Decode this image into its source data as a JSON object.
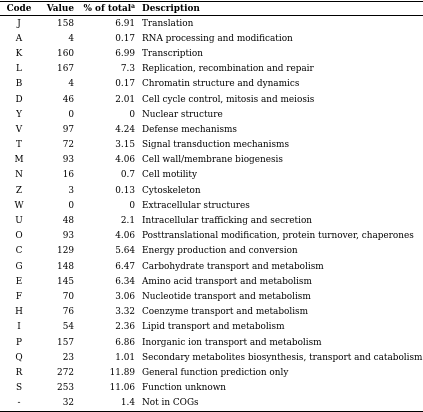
{
  "table": {
    "headers": {
      "code": "Code",
      "value": "Value",
      "percent": "% of total",
      "percent_sup": "a",
      "description": "Description"
    },
    "rows": [
      {
        "code": "J",
        "value": "158",
        "percent": "6.91",
        "description": "Translation"
      },
      {
        "code": "A",
        "value": "4",
        "percent": "0.17",
        "description": "RNA processing and modification"
      },
      {
        "code": "K",
        "value": "160",
        "percent": "6.99",
        "description": "Transcription"
      },
      {
        "code": "L",
        "value": "167",
        "percent": "7.3",
        "description": "Replication, recombination and repair"
      },
      {
        "code": "B",
        "value": "4",
        "percent": "0.17",
        "description": "Chromatin structure and dynamics"
      },
      {
        "code": "D",
        "value": "46",
        "percent": "2.01",
        "description": "Cell cycle control, mitosis and meiosis"
      },
      {
        "code": "Y",
        "value": "0",
        "percent": "0",
        "description": "Nuclear structure"
      },
      {
        "code": "V",
        "value": "97",
        "percent": "4.24",
        "description": "Defense mechanisms"
      },
      {
        "code": "T",
        "value": "72",
        "percent": "3.15",
        "description": "Signal transduction mechanisms"
      },
      {
        "code": "M",
        "value": "93",
        "percent": "4.06",
        "description": "Cell wall/membrane biogenesis"
      },
      {
        "code": "N",
        "value": "16",
        "percent": "0.7",
        "description": "Cell motility"
      },
      {
        "code": "Z",
        "value": "3",
        "percent": "0.13",
        "description": "Cytoskeleton"
      },
      {
        "code": "W",
        "value": "0",
        "percent": "0",
        "description": "Extracellular structures"
      },
      {
        "code": "U",
        "value": "48",
        "percent": "2.1",
        "description": "Intracellular trafficking and secretion"
      },
      {
        "code": "O",
        "value": "93",
        "percent": "4.06",
        "description": "Posttranslational modification, protein turnover, chaperones"
      },
      {
        "code": "C",
        "value": "129",
        "percent": "5.64",
        "description": "Energy production and conversion"
      },
      {
        "code": "G",
        "value": "148",
        "percent": "6.47",
        "description": "Carbohydrate transport and metabolism"
      },
      {
        "code": "E",
        "value": "145",
        "percent": "6.34",
        "description": "Amino acid transport and metabolism"
      },
      {
        "code": "F",
        "value": "70",
        "percent": "3.06",
        "description": "Nucleotide transport and metabolism"
      },
      {
        "code": "H",
        "value": "76",
        "percent": "3.32",
        "description": "Coenzyme transport and metabolism"
      },
      {
        "code": "I",
        "value": "54",
        "percent": "2.36",
        "description": "Lipid transport and metabolism"
      },
      {
        "code": "P",
        "value": "157",
        "percent": "6.86",
        "description": "Inorganic ion transport and metabolism"
      },
      {
        "code": "Q",
        "value": "23",
        "percent": "1.01",
        "description": "Secondary metabolites biosynthesis, transport and catabolism"
      },
      {
        "code": "R",
        "value": "272",
        "percent": "11.89",
        "description": "General function prediction only"
      },
      {
        "code": "S",
        "value": "253",
        "percent": "11.06",
        "description": "Function unknown"
      },
      {
        "code": "-",
        "value": "32",
        "percent": "1.4",
        "description": "Not in COGs"
      }
    ]
  }
}
